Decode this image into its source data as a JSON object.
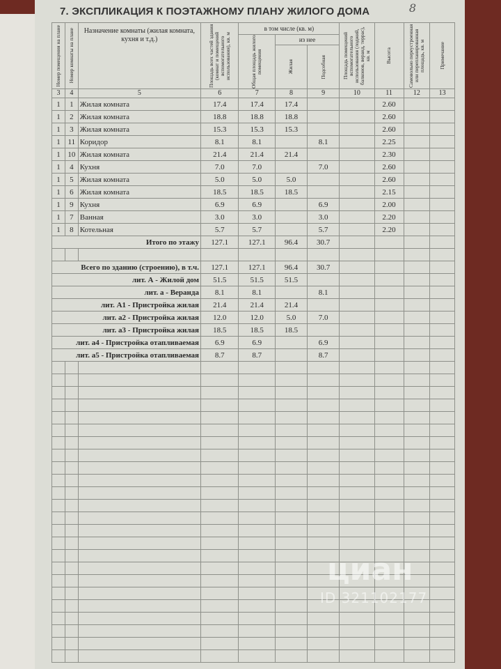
{
  "page_number": "8",
  "title": "7. ЭКСПЛИКАЦИЯ К ПОЭТАЖНОМУ ПЛАНУ ЖИЛОГО ДОМА",
  "table": {
    "headers": {
      "floor": "Номер помещения на плане",
      "room": "Номер комнаты на плане",
      "name": "Назначение комнаты (жилая комната, кухня и т.д.)",
      "total": "Площадь всех частей здания (комнат и помещений вспомогательного использования), кв. м",
      "including": "в том числе (кв. м)",
      "common": "Общая площадь жилого помещения",
      "of_which": "из нее",
      "living": "Жилая",
      "aux": "Подсобная",
      "loggia": "Площадь помещений вспомогательного использования (лоджий, балконов, веранд, террас), кв. м",
      "height": "Высота",
      "illegal": "Самовольно переустроенная или перепланированная площадь, кв. м",
      "note": "Примечание"
    },
    "column_numbers": {
      "floor": "3",
      "room": "4",
      "name": "5",
      "total": "6",
      "common": "7",
      "living": "8",
      "aux": "9",
      "loggia": "10",
      "height": "11",
      "illegal": "12",
      "note": "13"
    },
    "rooms": [
      {
        "floor": "1",
        "room": "1",
        "name": "Жилая комната",
        "total": "17.4",
        "common": "17.4",
        "living": "17.4",
        "height": "2.60"
      },
      {
        "floor": "1",
        "room": "2",
        "name": "Жилая комната",
        "total": "18.8",
        "common": "18.8",
        "living": "18.8",
        "height": "2.60"
      },
      {
        "floor": "1",
        "room": "3",
        "name": "Жилая комната",
        "total": "15.3",
        "common": "15.3",
        "living": "15.3",
        "height": "2.60"
      },
      {
        "floor": "1",
        "room": "11",
        "name": "Коридор",
        "total": "8.1",
        "common": "8.1",
        "aux": "8.1",
        "height": "2.25"
      },
      {
        "floor": "1",
        "room": "10",
        "name": "Жилая комната",
        "total": "21.4",
        "common": "21.4",
        "living": "21.4",
        "height": "2.30"
      },
      {
        "floor": "1",
        "room": "4",
        "name": "Кухня",
        "total": "7.0",
        "common": "7.0",
        "aux": "7.0",
        "height": "2.60"
      },
      {
        "floor": "1",
        "room": "5",
        "name": "Жилая комната",
        "total": "5.0",
        "common": "5.0",
        "living": "5.0",
        "height": "2.60"
      },
      {
        "floor": "1",
        "room": "6",
        "name": "Жилая комната",
        "total": "18.5",
        "common": "18.5",
        "living": "18.5",
        "height": "2.15"
      },
      {
        "floor": "1",
        "room": "9",
        "name": "Кухня",
        "total": "6.9",
        "common": "6.9",
        "aux": "6.9",
        "height": "2.00"
      },
      {
        "floor": "1",
        "room": "7",
        "name": "Ванная",
        "total": "3.0",
        "common": "3.0",
        "aux": "3.0",
        "height": "2.20"
      },
      {
        "floor": "1",
        "room": "8",
        "name": "Котельная",
        "total": "5.7",
        "common": "5.7",
        "aux": "5.7",
        "height": "2.20"
      }
    ],
    "floor_total": {
      "name": "Итого по этажу",
      "total": "127.1",
      "common": "127.1",
      "living": "96.4",
      "aux": "30.7"
    },
    "building_total": {
      "name": "Всего по зданию (строению), в т.ч.",
      "total": "127.1",
      "common": "127.1",
      "living": "96.4",
      "aux": "30.7"
    },
    "parts": [
      {
        "name": "лит. А - Жилой дом",
        "total": "51.5",
        "common": "51.5",
        "living": "51.5"
      },
      {
        "name": "лит. а - Веранда",
        "total": "8.1",
        "common": "8.1",
        "aux": "8.1"
      },
      {
        "name": "лит. А1 - Пристройка жилая",
        "total": "21.4",
        "common": "21.4",
        "living": "21.4"
      },
      {
        "name": "лит. а2 - Пристройка жилая",
        "total": "12.0",
        "common": "12.0",
        "living": "5.0",
        "aux": "7.0"
      },
      {
        "name": "лит. а3 - Пристройка жилая",
        "total": "18.5",
        "common": "18.5",
        "living": "18.5"
      },
      {
        "name": "лит. а4 - Пристройка отапливаемая",
        "total": "6.9",
        "common": "6.9",
        "aux": "6.9"
      },
      {
        "name": "лит. а5 - Пристройка отапливаемая",
        "total": "8.7",
        "common": "8.7",
        "aux": "8.7"
      }
    ]
  },
  "watermark": {
    "logo": "циан",
    "id": "ID 321102177"
  }
}
